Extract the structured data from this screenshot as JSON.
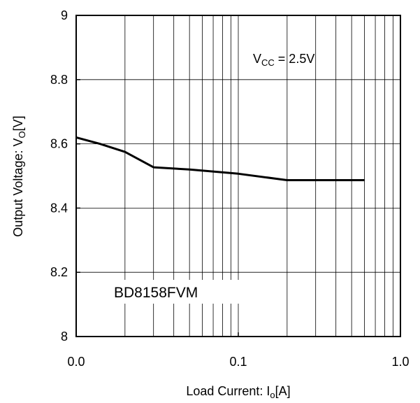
{
  "chart_data": {
    "type": "line",
    "title": "",
    "x_scale": "log",
    "xlim": [
      0.01,
      1.0
    ],
    "ylim": [
      8,
      9
    ],
    "grid": true,
    "xlabel": {
      "main": "Load Current: I",
      "sub": "o",
      "tail": "[A]"
    },
    "ylabel": {
      "main": "Output Voltage: V",
      "sub": "O",
      "tail": "[V]"
    },
    "x_ticks": [
      {
        "value": 0.01,
        "label": "0.0"
      },
      {
        "value": 0.1,
        "label": "0.1"
      },
      {
        "value": 1.0,
        "label": "1.0"
      }
    ],
    "y_ticks": [
      {
        "value": 8,
        "label": "8"
      },
      {
        "value": 8.2,
        "label": "8.2"
      },
      {
        "value": 8.4,
        "label": "8.4"
      },
      {
        "value": 8.6,
        "label": "8.6"
      },
      {
        "value": 8.8,
        "label": "8.8"
      },
      {
        "value": 9,
        "label": "9"
      }
    ],
    "series": [
      {
        "x": [
          0.01,
          0.014,
          0.02,
          0.03,
          0.05,
          0.1,
          0.2,
          0.3,
          0.6
        ],
        "y": [
          8.62,
          8.6,
          8.575,
          8.527,
          8.52,
          8.507,
          8.487,
          8.487,
          8.487
        ]
      }
    ],
    "annotations": [
      {
        "main": "V",
        "sub": "CC",
        "tail": " = 2.5V"
      },
      {
        "text": "BD8158FVM"
      }
    ]
  }
}
